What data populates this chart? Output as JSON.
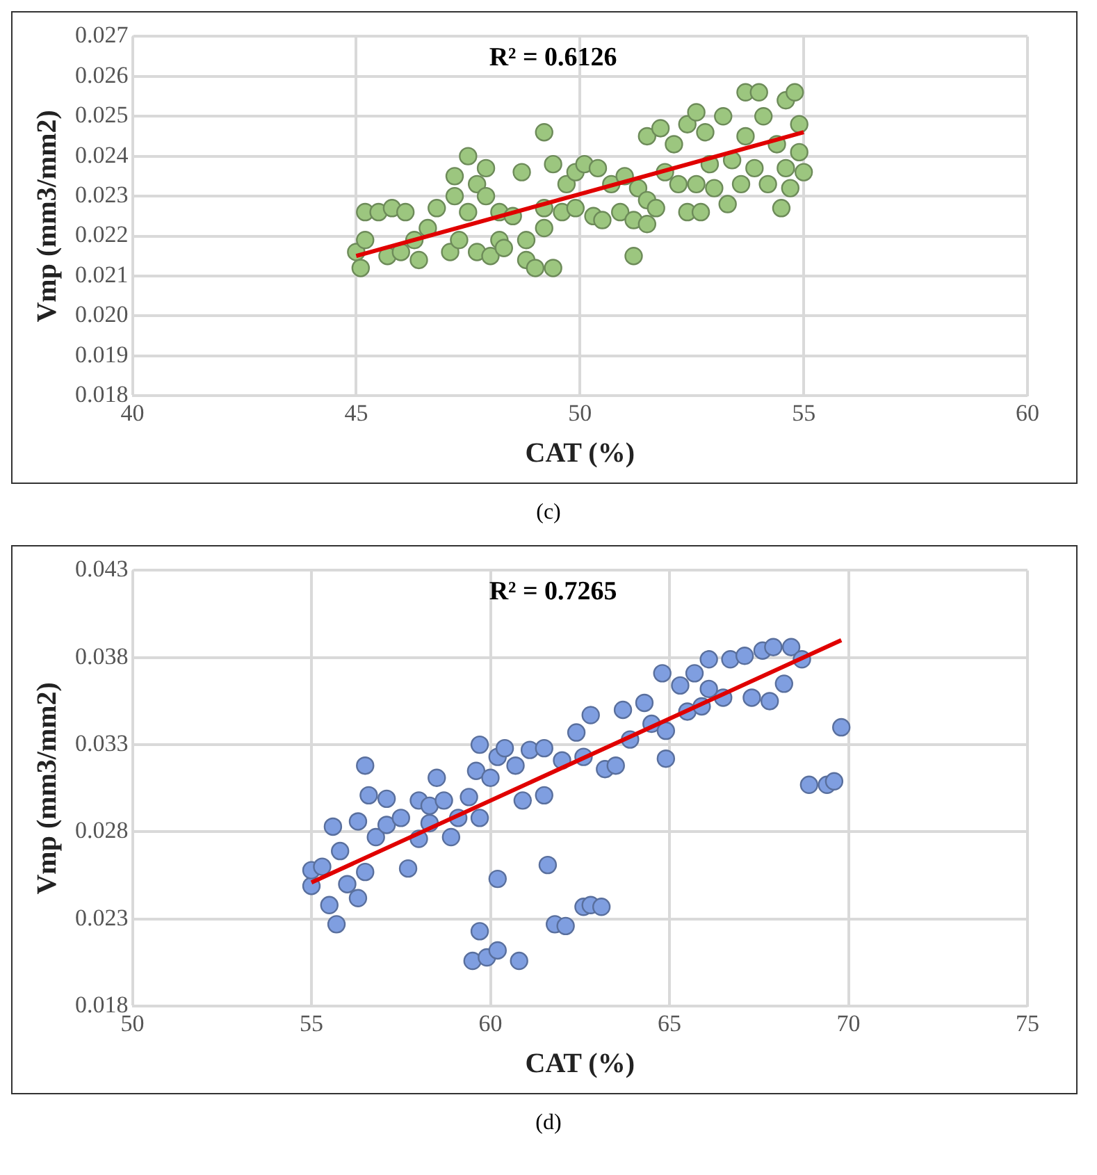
{
  "chart_data": [
    {
      "type": "scatter",
      "xlabel": "CAT (%)",
      "ylabel": "Vmp (mm3/mm2)",
      "xlim": [
        40,
        60
      ],
      "xticks": [
        40,
        45,
        50,
        55,
        60
      ],
      "ylim": [
        0.018,
        0.027
      ],
      "yticks": [
        {
          "value": 0.018,
          "label": "0.018"
        },
        {
          "value": 0.019,
          "label": "0.019"
        },
        {
          "value": 0.02,
          "label": "0.020"
        },
        {
          "value": 0.021,
          "label": "0.021"
        },
        {
          "value": 0.022,
          "label": "0.022"
        },
        {
          "value": 0.023,
          "label": "0.023"
        },
        {
          "value": 0.024,
          "label": "0.024"
        },
        {
          "value": 0.025,
          "label": "0.025"
        },
        {
          "value": 0.026,
          "label": "0.026"
        },
        {
          "value": 0.027,
          "label": "0.027"
        }
      ],
      "grid": true,
      "legend": false,
      "annotations": [
        "R² = 0.6126",
        "(c)"
      ],
      "series": [
        {
          "color": "#9cc67f",
          "marker": "circle",
          "x": [
            45.2,
            45.5,
            45.8,
            46.1,
            45.0,
            45.2,
            45.1,
            45.7,
            46.0,
            46.4,
            46.3,
            46.6,
            46.8,
            47.1,
            47.3,
            47.2,
            47.2,
            47.5,
            47.5,
            47.7,
            47.9,
            47.9,
            47.7,
            48.0,
            48.2,
            48.3,
            48.2,
            48.5,
            48.7,
            48.8,
            48.8,
            49.0,
            49.2,
            49.2,
            49.2,
            49.4,
            49.4,
            49.6,
            49.7,
            49.9,
            49.9,
            50.1,
            50.3,
            50.4,
            50.5,
            50.7,
            50.9,
            51.0,
            51.2,
            51.2,
            51.3,
            51.5,
            51.5,
            51.5,
            51.7,
            51.8,
            51.9,
            52.1,
            52.2,
            52.4,
            52.4,
            52.6,
            52.6,
            52.7,
            52.8,
            52.9,
            53.0,
            53.2,
            53.3,
            53.4,
            53.6,
            53.7,
            53.7,
            53.9,
            54.0,
            54.1,
            54.2,
            54.4,
            54.5,
            54.6,
            54.6,
            54.7,
            54.8,
            54.9,
            54.9,
            55.0
          ],
          "values": [
            0.0226,
            0.0226,
            0.0227,
            0.0226,
            0.0216,
            0.0219,
            0.0212,
            0.0215,
            0.0216,
            0.0214,
            0.0219,
            0.0222,
            0.0227,
            0.0216,
            0.0219,
            0.023,
            0.0235,
            0.024,
            0.0226,
            0.0233,
            0.0237,
            0.023,
            0.0216,
            0.0215,
            0.0219,
            0.0217,
            0.0226,
            0.0225,
            0.0236,
            0.0219,
            0.0214,
            0.0212,
            0.0246,
            0.0227,
            0.0222,
            0.0212,
            0.0238,
            0.0226,
            0.0233,
            0.0236,
            0.0227,
            0.0238,
            0.0225,
            0.0237,
            0.0224,
            0.0233,
            0.0226,
            0.0235,
            0.0224,
            0.0215,
            0.0232,
            0.0229,
            0.0245,
            0.0223,
            0.0227,
            0.0247,
            0.0236,
            0.0243,
            0.0233,
            0.0226,
            0.0248,
            0.0251,
            0.0233,
            0.0226,
            0.0246,
            0.0238,
            0.0232,
            0.025,
            0.0228,
            0.0239,
            0.0233,
            0.0256,
            0.0245,
            0.0237,
            0.0256,
            0.025,
            0.0233,
            0.0243,
            0.0227,
            0.0254,
            0.0237,
            0.0232,
            0.0256,
            0.0248,
            0.0241,
            0.0236
          ]
        },
        {
          "type": "line",
          "color": "#e00000",
          "marker": "none",
          "line_style": "solid",
          "x": [
            45,
            55
          ],
          "values": [
            0.0215,
            0.0246
          ]
        }
      ]
    },
    {
      "type": "scatter",
      "xlabel": "CAT (%)",
      "ylabel": "Vmp (mm3/mm2)",
      "xlim": [
        50,
        75
      ],
      "xticks": [
        50,
        55,
        60,
        65,
        70,
        75
      ],
      "ylim": [
        0.018,
        0.043
      ],
      "yticks": [
        0.018,
        0.023,
        0.028,
        0.033,
        0.038,
        0.043
      ],
      "grid": true,
      "legend": false,
      "annotations": [
        "R² = 0.7265",
        "(d)"
      ],
      "series": [
        {
          "color": "#7f9ee0",
          "marker": "circle",
          "x": [
            55.0,
            55.0,
            55.3,
            55.5,
            55.7,
            55.6,
            55.8,
            56.0,
            56.3,
            56.3,
            56.5,
            56.6,
            56.5,
            56.8,
            57.1,
            57.1,
            57.5,
            57.7,
            58.0,
            58.0,
            58.3,
            58.5,
            58.7,
            58.9,
            59.1,
            59.4,
            59.6,
            59.7,
            59.7,
            59.7,
            59.5,
            59.9,
            60.2,
            60.2,
            60.0,
            60.2,
            60.4,
            60.7,
            60.8,
            60.9,
            61.1,
            61.5,
            61.5,
            61.6,
            61.8,
            62.1,
            62.0,
            62.4,
            62.6,
            62.8,
            63.1,
            62.8,
            63.2,
            63.5,
            63.7,
            63.9,
            64.3,
            64.5,
            64.8,
            64.9,
            64.9,
            65.3,
            65.5,
            65.7,
            65.9,
            66.1,
            66.5,
            66.7,
            67.1,
            67.3,
            67.6,
            67.8,
            67.9,
            68.2,
            68.4,
            68.7,
            68.9,
            69.4,
            69.6,
            69.8,
            58.3,
            62.6,
            66.1
          ],
          "values": [
            0.0249,
            0.0258,
            0.026,
            0.0238,
            0.0227,
            0.0283,
            0.0269,
            0.025,
            0.0286,
            0.0242,
            0.0318,
            0.0301,
            0.0257,
            0.0277,
            0.0299,
            0.0284,
            0.0288,
            0.0259,
            0.0298,
            0.0276,
            0.0295,
            0.0311,
            0.0298,
            0.0277,
            0.0288,
            0.03,
            0.0315,
            0.033,
            0.0288,
            0.0223,
            0.0206,
            0.0208,
            0.0212,
            0.0253,
            0.0311,
            0.0323,
            0.0328,
            0.0318,
            0.0206,
            0.0298,
            0.0327,
            0.0328,
            0.0301,
            0.0261,
            0.0227,
            0.0226,
            0.0321,
            0.0337,
            0.0237,
            0.0238,
            0.0237,
            0.0347,
            0.0316,
            0.0318,
            0.035,
            0.0333,
            0.0354,
            0.0342,
            0.0371,
            0.0338,
            0.0322,
            0.0364,
            0.0349,
            0.0371,
            0.0352,
            0.0379,
            0.0357,
            0.0379,
            0.0381,
            0.0357,
            0.0384,
            0.0355,
            0.0386,
            0.0365,
            0.0386,
            0.0379,
            0.0307,
            0.0307,
            0.0309,
            0.034,
            0.0285,
            0.0323,
            0.0362
          ]
        },
        {
          "type": "line",
          "color": "#e00000",
          "marker": "none",
          "line_style": "solid",
          "x": [
            55,
            69.8
          ],
          "values": [
            0.0251,
            0.039
          ]
        }
      ]
    }
  ]
}
